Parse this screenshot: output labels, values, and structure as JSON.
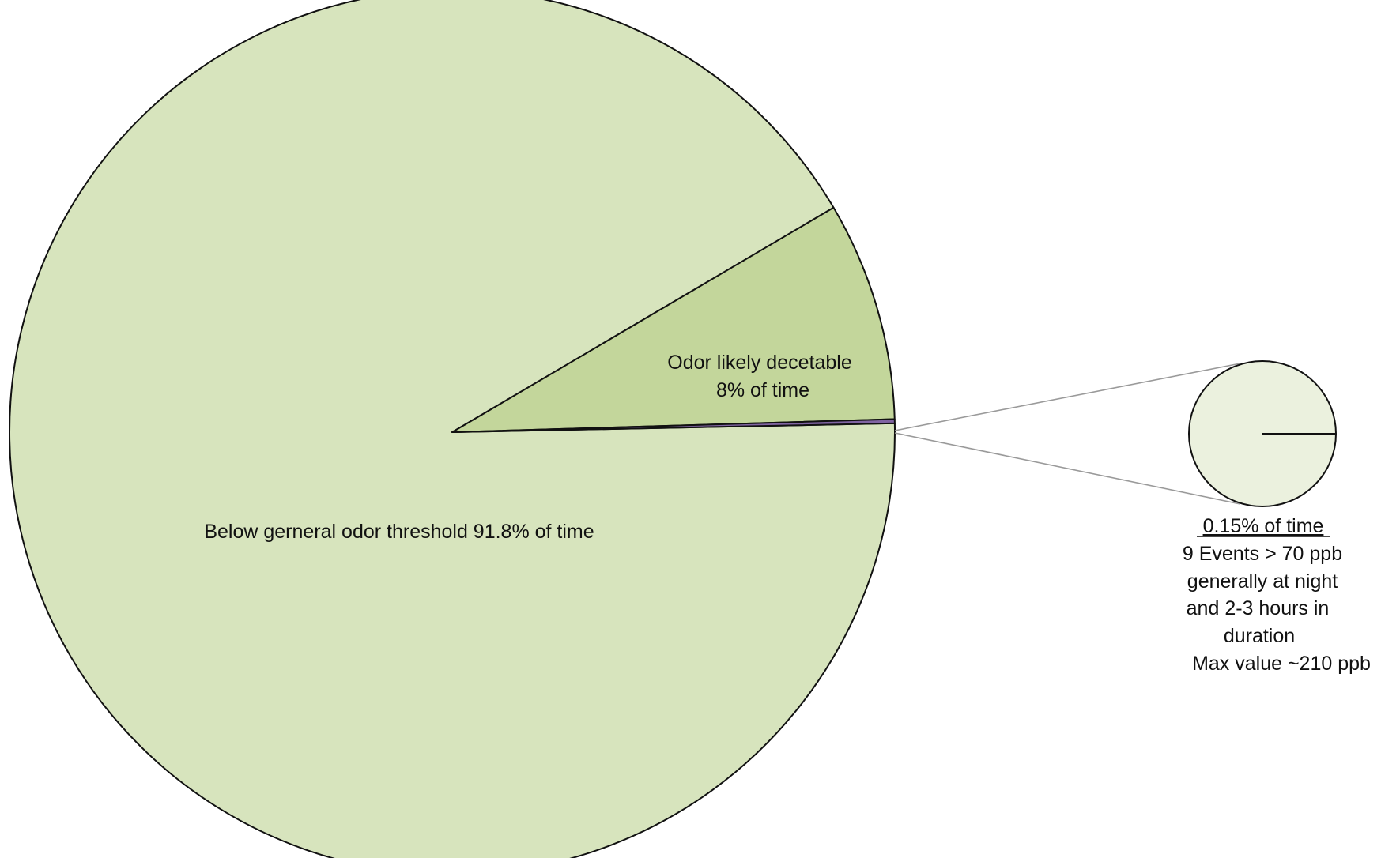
{
  "chart_data": {
    "type": "pie",
    "title": "",
    "slices": [
      {
        "label": "Below gerneral odor threshold 91.8% of time",
        "value": 91.8,
        "color": "#d7e4bd"
      },
      {
        "label": "Odor likely decetable 8% of time",
        "value": 8,
        "color": "#c3d69b"
      },
      {
        "label": "0.15% of time",
        "value": 0.15,
        "color": "#8064a2"
      }
    ],
    "labels": {
      "below": "Below gerneral odor threshold 91.8% of time",
      "odor_line1": "Odor likely  decetable",
      "odor_line2": "8% of time"
    },
    "inset": {
      "color": "#ebf1de",
      "title": "0.15% of time",
      "lines": [
        "9 Events > 70 ppb",
        "generally at night",
        "and 2-3 hours in",
        "duration",
        "Max value ~210 ppb"
      ]
    }
  }
}
